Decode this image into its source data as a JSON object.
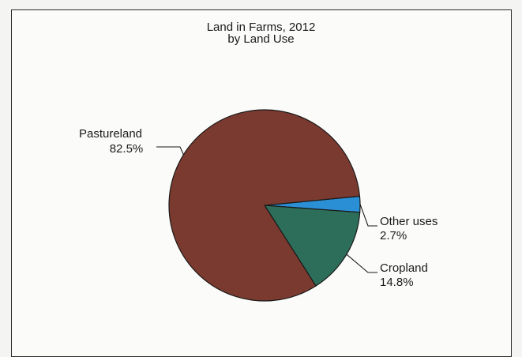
{
  "chart_data": {
    "type": "pie",
    "title": "Land in Farms, 2012",
    "subtitle": "by Land Use",
    "slices": [
      {
        "label": "Pastureland",
        "value": 82.5,
        "value_label": "82.5%",
        "color": "#7b3a2f"
      },
      {
        "label": "Cropland",
        "value": 14.8,
        "value_label": "14.8%",
        "color": "#2d6e5a"
      },
      {
        "label": "Other uses",
        "value": 2.7,
        "value_label": "2.7%",
        "color": "#2b8fd6"
      }
    ]
  }
}
